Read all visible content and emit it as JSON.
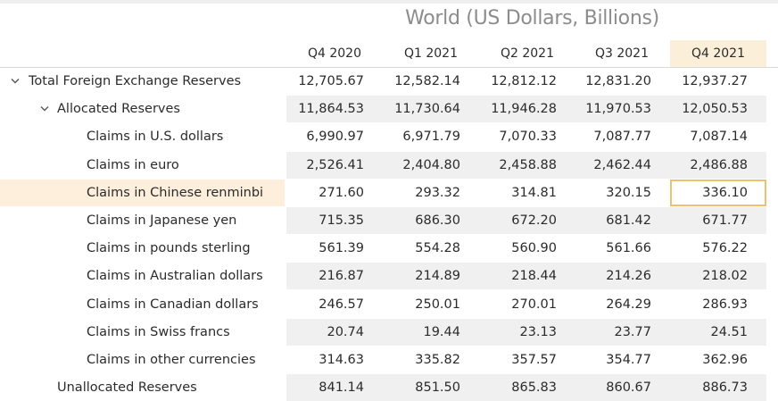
{
  "title": "World (US Dollars, Billions)",
  "columns": [
    "Q4 2020",
    "Q1 2021",
    "Q2 2021",
    "Q3 2021",
    "Q4 2021"
  ],
  "rows": [
    {
      "label": "Total Foreign Exchange Reserves",
      "level": 0,
      "expander": "chevron-down-icon",
      "values": [
        "12,705.67",
        "12,582.14",
        "12,812.12",
        "12,831.20",
        "12,937.27"
      ]
    },
    {
      "label": "Allocated Reserves",
      "level": 1,
      "expander": "chevron-down-icon",
      "values": [
        "11,864.53",
        "11,730.64",
        "11,946.28",
        "11,970.53",
        "12,050.53"
      ]
    },
    {
      "label": "Claims in U.S. dollars",
      "level": 2,
      "values": [
        "6,990.97",
        "6,971.79",
        "7,070.33",
        "7,087.77",
        "7,087.14"
      ]
    },
    {
      "label": "Claims in euro",
      "level": 2,
      "values": [
        "2,526.41",
        "2,404.80",
        "2,458.88",
        "2,462.44",
        "2,486.88"
      ]
    },
    {
      "label": "Claims in Chinese renminbi",
      "level": 2,
      "values": [
        "271.60",
        "293.32",
        "314.81",
        "320.15",
        "336.10"
      ]
    },
    {
      "label": "Claims in Japanese yen",
      "level": 2,
      "values": [
        "715.35",
        "686.30",
        "672.20",
        "681.42",
        "671.77"
      ]
    },
    {
      "label": "Claims in pounds sterling",
      "level": 2,
      "values": [
        "561.39",
        "554.28",
        "560.90",
        "561.66",
        "576.22"
      ]
    },
    {
      "label": "Claims in Australian dollars",
      "level": 2,
      "values": [
        "216.87",
        "214.89",
        "218.44",
        "214.26",
        "218.02"
      ]
    },
    {
      "label": "Claims in Canadian dollars",
      "level": 2,
      "values": [
        "246.57",
        "250.01",
        "270.01",
        "264.29",
        "286.93"
      ]
    },
    {
      "label": "Claims in Swiss francs",
      "level": 2,
      "values": [
        "20.74",
        "19.44",
        "23.13",
        "23.77",
        "24.51"
      ]
    },
    {
      "label": "Claims in other currencies",
      "level": 2,
      "values": [
        "314.63",
        "335.82",
        "357.57",
        "354.77",
        "362.96"
      ]
    },
    {
      "label": "Unallocated Reserves",
      "level": 1,
      "values": [
        "841.14",
        "851.50",
        "865.83",
        "860.67",
        "886.73"
      ]
    }
  ],
  "selection": {
    "row_label": "Claims in Chinese renminbi",
    "column": "Q4 2021"
  },
  "colors": {
    "highlight": "#fdefdb",
    "selected_border": "#f0c070",
    "row_shade": "#f0f0f0",
    "title": "#8c8c8c"
  }
}
